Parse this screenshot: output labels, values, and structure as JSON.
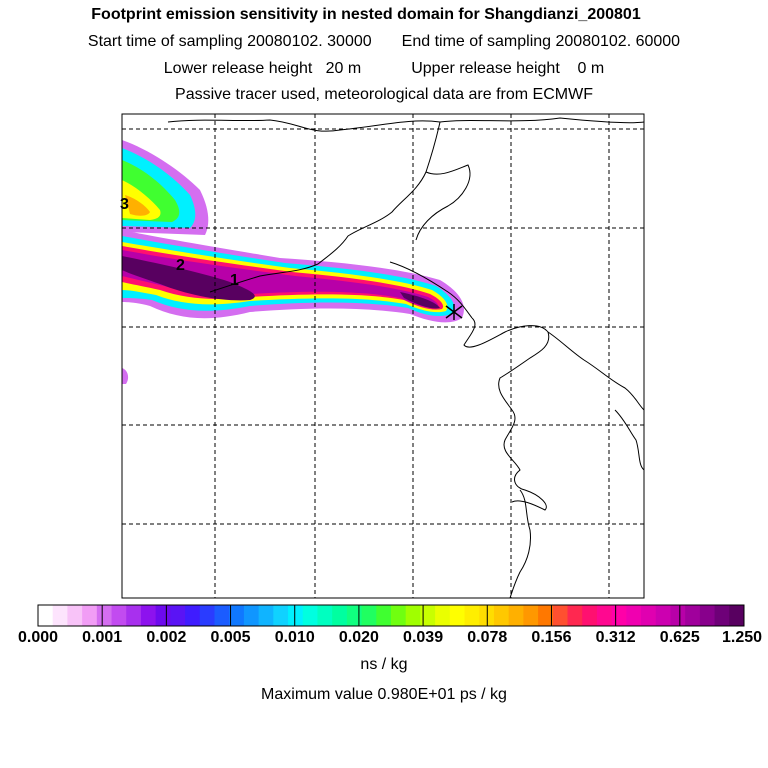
{
  "header": {
    "title": "Footprint emission sensitivity in nested domain for Shangdianzi_200801",
    "start_label": "Start time of sampling 20080102. 30000",
    "end_label": "End time of sampling 20080102. 60000",
    "lower_label": "Lower release height   20 m",
    "upper_label": "Upper release height    0 m",
    "note": "Passive tracer used, meteorological data are from ECMWF"
  },
  "map": {
    "point_labels": [
      "3",
      "2",
      "1"
    ],
    "release_marker": "star-marker"
  },
  "colorbar": {
    "tick_labels": [
      "0.000",
      "0.001",
      "0.002",
      "0.005",
      "0.010",
      "0.020",
      "0.039",
      "0.078",
      "0.156",
      "0.312",
      "0.625",
      "1.250"
    ],
    "colors": [
      "#ffffff",
      "#fde4fd",
      "#f8c3f8",
      "#f19df5",
      "#d46ef0",
      "#c24bf0",
      "#a830ee",
      "#8d12ee",
      "#6d0aee",
      "#5a14f5",
      "#3f1cff",
      "#2a3cff",
      "#1b5cff",
      "#1078ff",
      "#1096ff",
      "#10b4ff",
      "#10d2ff",
      "#00f0ff",
      "#00ffe0",
      "#00ffc0",
      "#00ffa0",
      "#10ff80",
      "#20ff60",
      "#40ff30",
      "#70ff10",
      "#a0ff00",
      "#c8ff00",
      "#eaff00",
      "#ffff00",
      "#ffee00",
      "#ffdd00",
      "#ffc800",
      "#ffb000",
      "#ff9800",
      "#ff7800",
      "#ff5030",
      "#ff2850",
      "#ff1070",
      "#ff0890",
      "#ff00a8",
      "#f000b0",
      "#e000b0",
      "#cc00b0",
      "#b800a8",
      "#a0009c",
      "#88008c",
      "#6e0078",
      "#580060"
    ],
    "units": "ns / kg"
  },
  "footer": {
    "max_value": "Maximum value  0.980E+01 ps / kg"
  }
}
